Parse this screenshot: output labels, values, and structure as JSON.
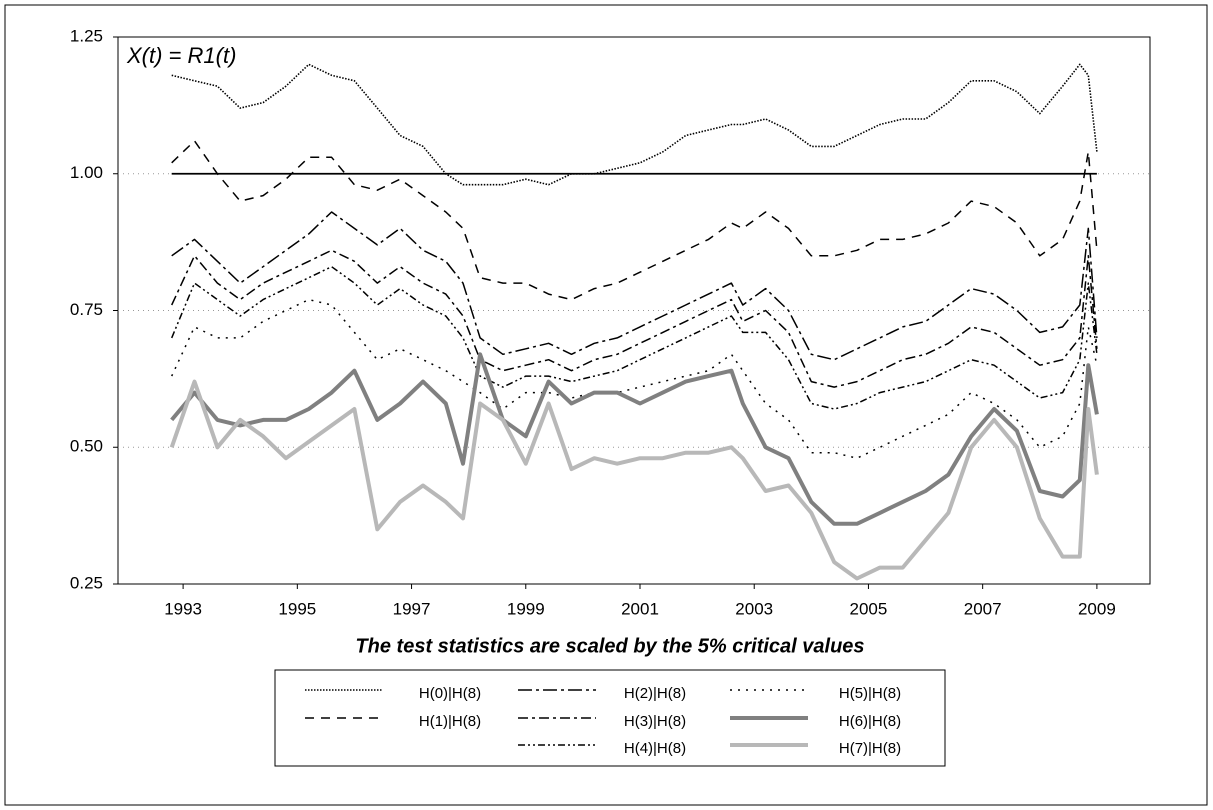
{
  "chart_data": {
    "type": "line",
    "title": "X(t) = R1(t)",
    "subtitle": "The test statistics are scaled by the 5% critical values",
    "x": [
      1992.8,
      1993.2,
      1993.6,
      1994.0,
      1994.4,
      1994.8,
      1995.2,
      1995.6,
      1996.0,
      1996.4,
      1996.8,
      1997.2,
      1997.6,
      1997.9,
      1998.2,
      1998.6,
      1999.0,
      1999.4,
      1999.8,
      2000.2,
      2000.6,
      2001.0,
      2001.4,
      2001.8,
      2002.2,
      2002.6,
      2002.8,
      2003.2,
      2003.6,
      2004.0,
      2004.4,
      2004.8,
      2005.2,
      2005.6,
      2006.0,
      2006.4,
      2006.8,
      2007.2,
      2007.6,
      2008.0,
      2008.4,
      2008.7,
      2008.85,
      2009.0
    ],
    "xlim": [
      1991.86,
      2009.93
    ],
    "xticks": [
      1993,
      1995,
      1997,
      1999,
      2001,
      2003,
      2005,
      2007,
      2009
    ],
    "ylim": [
      0.25,
      1.25
    ],
    "yticks": [
      {
        "value": 0.25,
        "label": "0.25"
      },
      {
        "value": 0.5,
        "label": "0.50"
      },
      {
        "value": 0.75,
        "label": "0.75"
      },
      {
        "value": 1,
        "label": "1.00"
      },
      {
        "value": 1.25,
        "label": "1.25"
      }
    ],
    "hline": 1,
    "grid": true,
    "legend": "bottom",
    "series": [
      {
        "name": "H(0)|H(8)",
        "color": "#000000",
        "width": 1.6,
        "dash": "1.5,1.5",
        "values": [
          1.18,
          1.17,
          1.16,
          1.12,
          1.13,
          1.16,
          1.2,
          1.18,
          1.17,
          1.12,
          1.07,
          1.05,
          1.0,
          0.98,
          0.98,
          0.98,
          0.99,
          0.98,
          1.0,
          1.0,
          1.01,
          1.02,
          1.04,
          1.07,
          1.08,
          1.09,
          1.09,
          1.1,
          1.08,
          1.05,
          1.05,
          1.07,
          1.09,
          1.1,
          1.1,
          1.13,
          1.17,
          1.17,
          1.15,
          1.11,
          1.16,
          1.2,
          1.18,
          1.04
        ]
      },
      {
        "name": "H(1)|H(8)",
        "color": "#000000",
        "width": 1.5,
        "dash": "9,7",
        "values": [
          1.02,
          1.06,
          1.0,
          0.95,
          0.96,
          0.99,
          1.03,
          1.03,
          0.98,
          0.97,
          0.99,
          0.96,
          0.93,
          0.9,
          0.81,
          0.8,
          0.8,
          0.78,
          0.77,
          0.79,
          0.8,
          0.82,
          0.84,
          0.86,
          0.88,
          0.91,
          0.9,
          0.93,
          0.9,
          0.85,
          0.85,
          0.86,
          0.88,
          0.88,
          0.89,
          0.91,
          0.95,
          0.94,
          0.91,
          0.85,
          0.88,
          0.95,
          1.04,
          0.86
        ]
      },
      {
        "name": "H(2)|H(8)",
        "color": "#000000",
        "width": 1.5,
        "dash": "14,4,3,4",
        "values": [
          0.85,
          0.88,
          0.84,
          0.8,
          0.83,
          0.86,
          0.89,
          0.93,
          0.9,
          0.87,
          0.9,
          0.86,
          0.84,
          0.8,
          0.7,
          0.67,
          0.68,
          0.69,
          0.67,
          0.69,
          0.7,
          0.72,
          0.74,
          0.76,
          0.78,
          0.8,
          0.76,
          0.79,
          0.75,
          0.67,
          0.66,
          0.68,
          0.7,
          0.72,
          0.73,
          0.76,
          0.79,
          0.78,
          0.75,
          0.71,
          0.72,
          0.76,
          0.9,
          0.7
        ]
      },
      {
        "name": "H(3)|H(8)",
        "color": "#000000",
        "width": 1.5,
        "dash": "10,4,3,4",
        "values": [
          0.76,
          0.85,
          0.8,
          0.77,
          0.8,
          0.82,
          0.84,
          0.86,
          0.84,
          0.8,
          0.83,
          0.8,
          0.78,
          0.74,
          0.66,
          0.64,
          0.65,
          0.66,
          0.64,
          0.66,
          0.67,
          0.69,
          0.71,
          0.73,
          0.75,
          0.77,
          0.73,
          0.75,
          0.71,
          0.62,
          0.61,
          0.62,
          0.64,
          0.66,
          0.67,
          0.69,
          0.72,
          0.71,
          0.68,
          0.65,
          0.66,
          0.7,
          0.85,
          0.68
        ]
      },
      {
        "name": "H(4)|H(8)",
        "color": "#000000",
        "width": 1.5,
        "dash": "7,3,2,3,2,3",
        "values": [
          0.7,
          0.8,
          0.77,
          0.74,
          0.77,
          0.79,
          0.81,
          0.83,
          0.8,
          0.76,
          0.79,
          0.76,
          0.74,
          0.7,
          0.63,
          0.61,
          0.63,
          0.63,
          0.62,
          0.63,
          0.64,
          0.66,
          0.68,
          0.7,
          0.72,
          0.74,
          0.71,
          0.71,
          0.66,
          0.58,
          0.57,
          0.58,
          0.6,
          0.61,
          0.62,
          0.64,
          0.66,
          0.65,
          0.62,
          0.59,
          0.6,
          0.66,
          0.8,
          0.67
        ]
      },
      {
        "name": "H(5)|H(8)",
        "color": "#000000",
        "width": 1.5,
        "dash": "2,6",
        "values": [
          0.63,
          0.72,
          0.7,
          0.7,
          0.73,
          0.75,
          0.77,
          0.76,
          0.71,
          0.66,
          0.68,
          0.66,
          0.64,
          0.62,
          0.6,
          0.57,
          0.6,
          0.6,
          0.59,
          0.6,
          0.6,
          0.61,
          0.62,
          0.63,
          0.64,
          0.67,
          0.64,
          0.58,
          0.55,
          0.49,
          0.49,
          0.48,
          0.5,
          0.52,
          0.54,
          0.56,
          0.6,
          0.58,
          0.55,
          0.5,
          0.52,
          0.58,
          0.72,
          0.65
        ]
      },
      {
        "name": "H(6)|H(8)",
        "color": "#808080",
        "width": 4,
        "dash": "none",
        "values": [
          0.55,
          0.6,
          0.55,
          0.54,
          0.55,
          0.55,
          0.57,
          0.6,
          0.64,
          0.55,
          0.58,
          0.62,
          0.58,
          0.47,
          0.67,
          0.55,
          0.52,
          0.62,
          0.58,
          0.6,
          0.6,
          0.58,
          0.6,
          0.62,
          0.63,
          0.64,
          0.58,
          0.5,
          0.48,
          0.4,
          0.36,
          0.36,
          0.38,
          0.4,
          0.42,
          0.45,
          0.52,
          0.57,
          0.53,
          0.42,
          0.41,
          0.44,
          0.65,
          0.56
        ]
      },
      {
        "name": "H(7)|H(8)",
        "color": "#b8b8b8",
        "width": 4,
        "dash": "none",
        "values": [
          0.5,
          0.62,
          0.5,
          0.55,
          0.52,
          0.48,
          0.51,
          0.54,
          0.57,
          0.35,
          0.4,
          0.43,
          0.4,
          0.37,
          0.58,
          0.55,
          0.47,
          0.58,
          0.46,
          0.48,
          0.47,
          0.48,
          0.48,
          0.49,
          0.49,
          0.5,
          0.48,
          0.42,
          0.43,
          0.38,
          0.29,
          0.26,
          0.28,
          0.28,
          0.33,
          0.38,
          0.5,
          0.55,
          0.5,
          0.37,
          0.3,
          0.3,
          0.57,
          0.45
        ]
      }
    ]
  }
}
